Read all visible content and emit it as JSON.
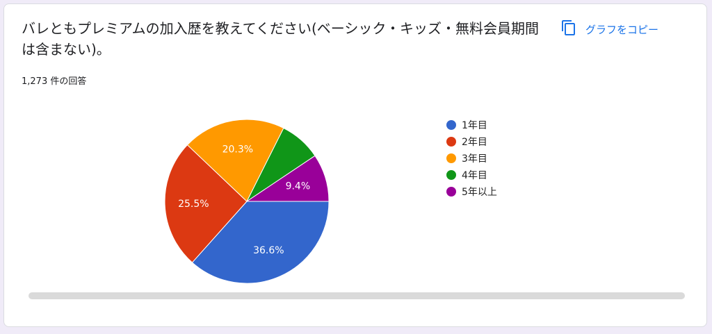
{
  "question": {
    "title": "バレともプレミアムの加入歴を教えてください(ベーシック・キッズ・無料会員期間は含まない)。",
    "response_count": "1,273 件の回答"
  },
  "actions": {
    "copy_label": "グラフをコピー",
    "copy_icon": "copy-icon"
  },
  "colors": {
    "accent": "#1a73e8"
  },
  "chart_data": {
    "type": "pie",
    "title": "",
    "legend_position": "right",
    "categories": [
      "1年目",
      "2年目",
      "3年目",
      "4年目",
      "5年以上"
    ],
    "values": [
      36.6,
      25.5,
      20.3,
      8.2,
      9.4
    ],
    "data_labels": [
      "36.6%",
      "25.5%",
      "20.3%",
      "",
      "9.4%"
    ],
    "colors": [
      "#3366cc",
      "#dc3912",
      "#ff9900",
      "#109618",
      "#990099"
    ]
  }
}
